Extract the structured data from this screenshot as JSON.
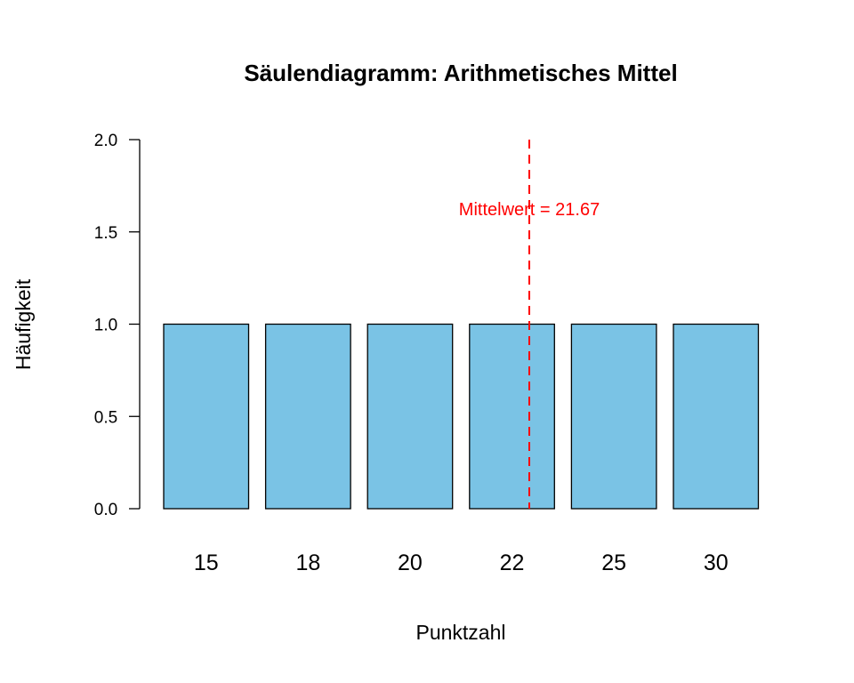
{
  "chart_data": {
    "type": "bar",
    "title": "Säulendiagramm: Arithmetisches Mittel",
    "xlabel": "Punktzahl",
    "ylabel": "Häufigkeit",
    "categories": [
      "15",
      "18",
      "20",
      "22",
      "25",
      "30"
    ],
    "values": [
      1,
      1,
      1,
      1,
      1,
      1
    ],
    "ylim": [
      0,
      2
    ],
    "yticks": [
      "0.0",
      "0.5",
      "1.0",
      "1.5",
      "2.0"
    ],
    "ytick_values": [
      0,
      0.5,
      1,
      1.5,
      2
    ],
    "grid": false,
    "legend": "none",
    "bar_color": "#7AC3E5",
    "mean_line": {
      "value": 21.67,
      "label": "Mittelwert = 21.67",
      "style": "dashed",
      "color": "#FF0000"
    }
  }
}
